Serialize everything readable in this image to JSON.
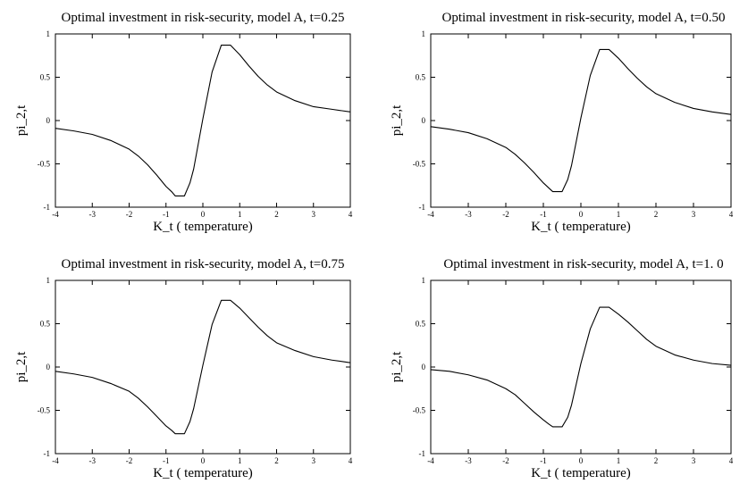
{
  "chart_data": [
    {
      "type": "line",
      "title": "Optimal investment in risk-security, model A, t=0.25",
      "xlabel": "K_t ( temperature)",
      "ylabel": "pi_2,t",
      "xlim": [
        -4,
        4
      ],
      "ylim": [
        -1,
        1
      ],
      "xticks": [
        "-4",
        "-3",
        "-2",
        "-1",
        "0",
        "1",
        "2",
        "3",
        "4"
      ],
      "yticks": [
        "-1",
        "-0.5",
        "0",
        "0.5",
        "1"
      ],
      "grid": false,
      "series": [
        {
          "x": [
            -4,
            -3.5,
            -3,
            -2.5,
            -2,
            -1.75,
            -1.5,
            -1.25,
            -1,
            -0.85,
            -0.75,
            -0.5,
            -0.35,
            -0.25,
            0,
            0.25,
            0.5,
            0.75,
            1,
            1.25,
            1.5,
            1.75,
            2,
            2.5,
            3,
            3.5,
            4
          ],
          "y": [
            -0.09,
            -0.12,
            -0.16,
            -0.23,
            -0.33,
            -0.41,
            -0.51,
            -0.63,
            -0.76,
            -0.82,
            -0.87,
            -0.87,
            -0.72,
            -0.56,
            0.02,
            0.56,
            0.87,
            0.87,
            0.76,
            0.63,
            0.51,
            0.41,
            0.33,
            0.23,
            0.16,
            0.13,
            0.1
          ]
        }
      ]
    },
    {
      "type": "line",
      "title": "Optimal investment in risk-security, model A, t=0.50",
      "xlabel": "K_t ( temperature)",
      "ylabel": "pi_2,t",
      "xlim": [
        -4,
        4
      ],
      "ylim": [
        -1,
        1
      ],
      "xticks": [
        "-4",
        "-3",
        "-2",
        "-1",
        "0",
        "1",
        "2",
        "3",
        "4"
      ],
      "yticks": [
        "-1",
        "-0.5",
        "0",
        "0.5",
        "1"
      ],
      "grid": false,
      "series": [
        {
          "x": [
            -4,
            -3.5,
            -3,
            -2.5,
            -2,
            -1.75,
            -1.5,
            -1.25,
            -1,
            -0.85,
            -0.75,
            -0.5,
            -0.35,
            -0.25,
            0,
            0.25,
            0.5,
            0.75,
            1,
            1.25,
            1.5,
            1.75,
            2,
            2.5,
            3,
            3.5,
            4
          ],
          "y": [
            -0.07,
            -0.1,
            -0.14,
            -0.21,
            -0.31,
            -0.39,
            -0.49,
            -0.6,
            -0.72,
            -0.78,
            -0.82,
            -0.82,
            -0.68,
            -0.52,
            0.03,
            0.52,
            0.82,
            0.82,
            0.72,
            0.6,
            0.49,
            0.39,
            0.31,
            0.21,
            0.14,
            0.1,
            0.07
          ]
        }
      ]
    },
    {
      "type": "line",
      "title": "Optimal investment in risk-security, model A, t=0.75",
      "xlabel": "K_t ( temperature)",
      "ylabel": "pi_2,t",
      "xlim": [
        -4,
        4
      ],
      "ylim": [
        -1,
        1
      ],
      "xticks": [
        "-4",
        "-3",
        "-2",
        "-1",
        "0",
        "1",
        "2",
        "3",
        "4"
      ],
      "yticks": [
        "-1",
        "-0.5",
        "0",
        "0.5",
        "1"
      ],
      "grid": false,
      "series": [
        {
          "x": [
            -4,
            -3.5,
            -3,
            -2.5,
            -2,
            -1.75,
            -1.5,
            -1.25,
            -1,
            -0.85,
            -0.75,
            -0.5,
            -0.35,
            -0.25,
            0,
            0.25,
            0.5,
            0.75,
            1,
            1.25,
            1.5,
            1.75,
            2,
            2.5,
            3,
            3.5,
            4
          ],
          "y": [
            -0.05,
            -0.08,
            -0.12,
            -0.19,
            -0.28,
            -0.36,
            -0.46,
            -0.57,
            -0.68,
            -0.73,
            -0.77,
            -0.77,
            -0.63,
            -0.48,
            0.02,
            0.49,
            0.77,
            0.77,
            0.68,
            0.57,
            0.46,
            0.36,
            0.28,
            0.19,
            0.12,
            0.08,
            0.05
          ]
        }
      ]
    },
    {
      "type": "line",
      "title": "Optimal investment in risk-security, model A, t=1. 0",
      "xlabel": "K_t ( temperature)",
      "ylabel": "pi_2,t",
      "xlim": [
        -4,
        4
      ],
      "ylim": [
        -1,
        1
      ],
      "xticks": [
        "-4",
        "-3",
        "-2",
        "-1",
        "0",
        "1",
        "2",
        "3",
        "4"
      ],
      "yticks": [
        "-1",
        "-0.5",
        "0",
        "0.5",
        "1"
      ],
      "grid": false,
      "series": [
        {
          "x": [
            -4,
            -3.5,
            -3,
            -2.5,
            -2,
            -1.75,
            -1.5,
            -1.25,
            -1,
            -0.85,
            -0.75,
            -0.5,
            -0.35,
            -0.25,
            0,
            0.25,
            0.5,
            0.75,
            1,
            1.25,
            1.5,
            1.75,
            2,
            2.5,
            3,
            3.5,
            4
          ],
          "y": [
            -0.03,
            -0.05,
            -0.09,
            -0.15,
            -0.25,
            -0.32,
            -0.42,
            -0.52,
            -0.61,
            -0.66,
            -0.69,
            -0.69,
            -0.58,
            -0.44,
            0.04,
            0.44,
            0.69,
            0.69,
            0.61,
            0.52,
            0.42,
            0.32,
            0.24,
            0.14,
            0.08,
            0.04,
            0.02
          ]
        }
      ]
    }
  ]
}
